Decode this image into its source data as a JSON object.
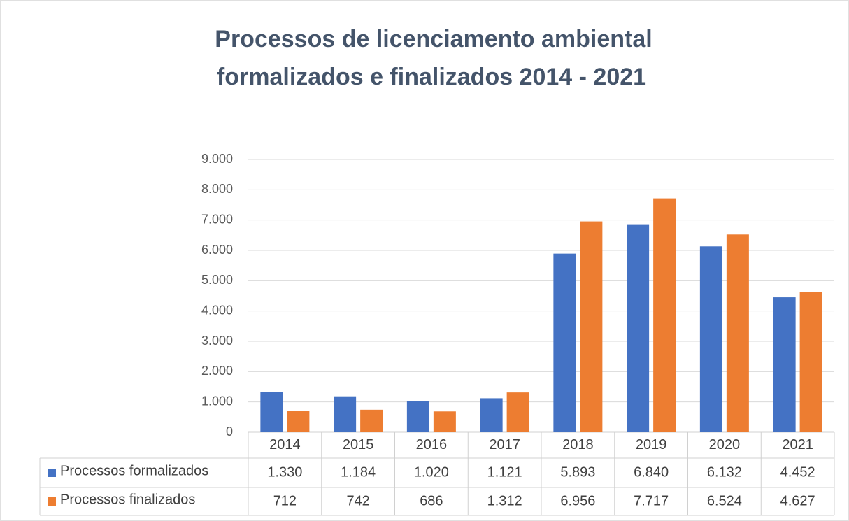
{
  "chart_data": {
    "type": "bar",
    "title": [
      "Processos de licenciamento ambiental",
      "formalizados  e finalizados  2014 - 2021"
    ],
    "categories": [
      "2014",
      "2015",
      "2016",
      "2017",
      "2018",
      "2019",
      "2020",
      "2021"
    ],
    "series": [
      {
        "name": "Processos formalizados",
        "color": "#4472c4",
        "values": [
          1330,
          1184,
          1020,
          1121,
          5893,
          6840,
          6132,
          4452
        ],
        "value_labels": [
          "1.330",
          "1.184",
          "1.020",
          "1.121",
          "5.893",
          "6.840",
          "6.132",
          "4.452"
        ]
      },
      {
        "name": "Processos finalizados",
        "color": "#ed7d31",
        "values": [
          712,
          742,
          686,
          1312,
          6956,
          7717,
          6524,
          4627
        ],
        "value_labels": [
          "712",
          "742",
          "686",
          "1.312",
          "6.956",
          "7.717",
          "6.524",
          "4.627"
        ]
      }
    ],
    "ylim": [
      0,
      9000
    ],
    "yticks": [
      0,
      {
        "value": 1000,
        "label": "1.000"
      },
      {
        "value": 2000,
        "label": "2.000"
      },
      {
        "value": 3000,
        "label": "3.000"
      },
      {
        "value": 4000,
        "label": "4.000"
      },
      {
        "value": 5000,
        "label": "5.000"
      },
      {
        "value": 6000,
        "label": "6.000"
      },
      {
        "value": 7000,
        "label": "7.000"
      },
      {
        "value": 8000,
        "label": "8.000"
      },
      {
        "value": 9000,
        "label": "9.000"
      }
    ],
    "grid": true
  }
}
